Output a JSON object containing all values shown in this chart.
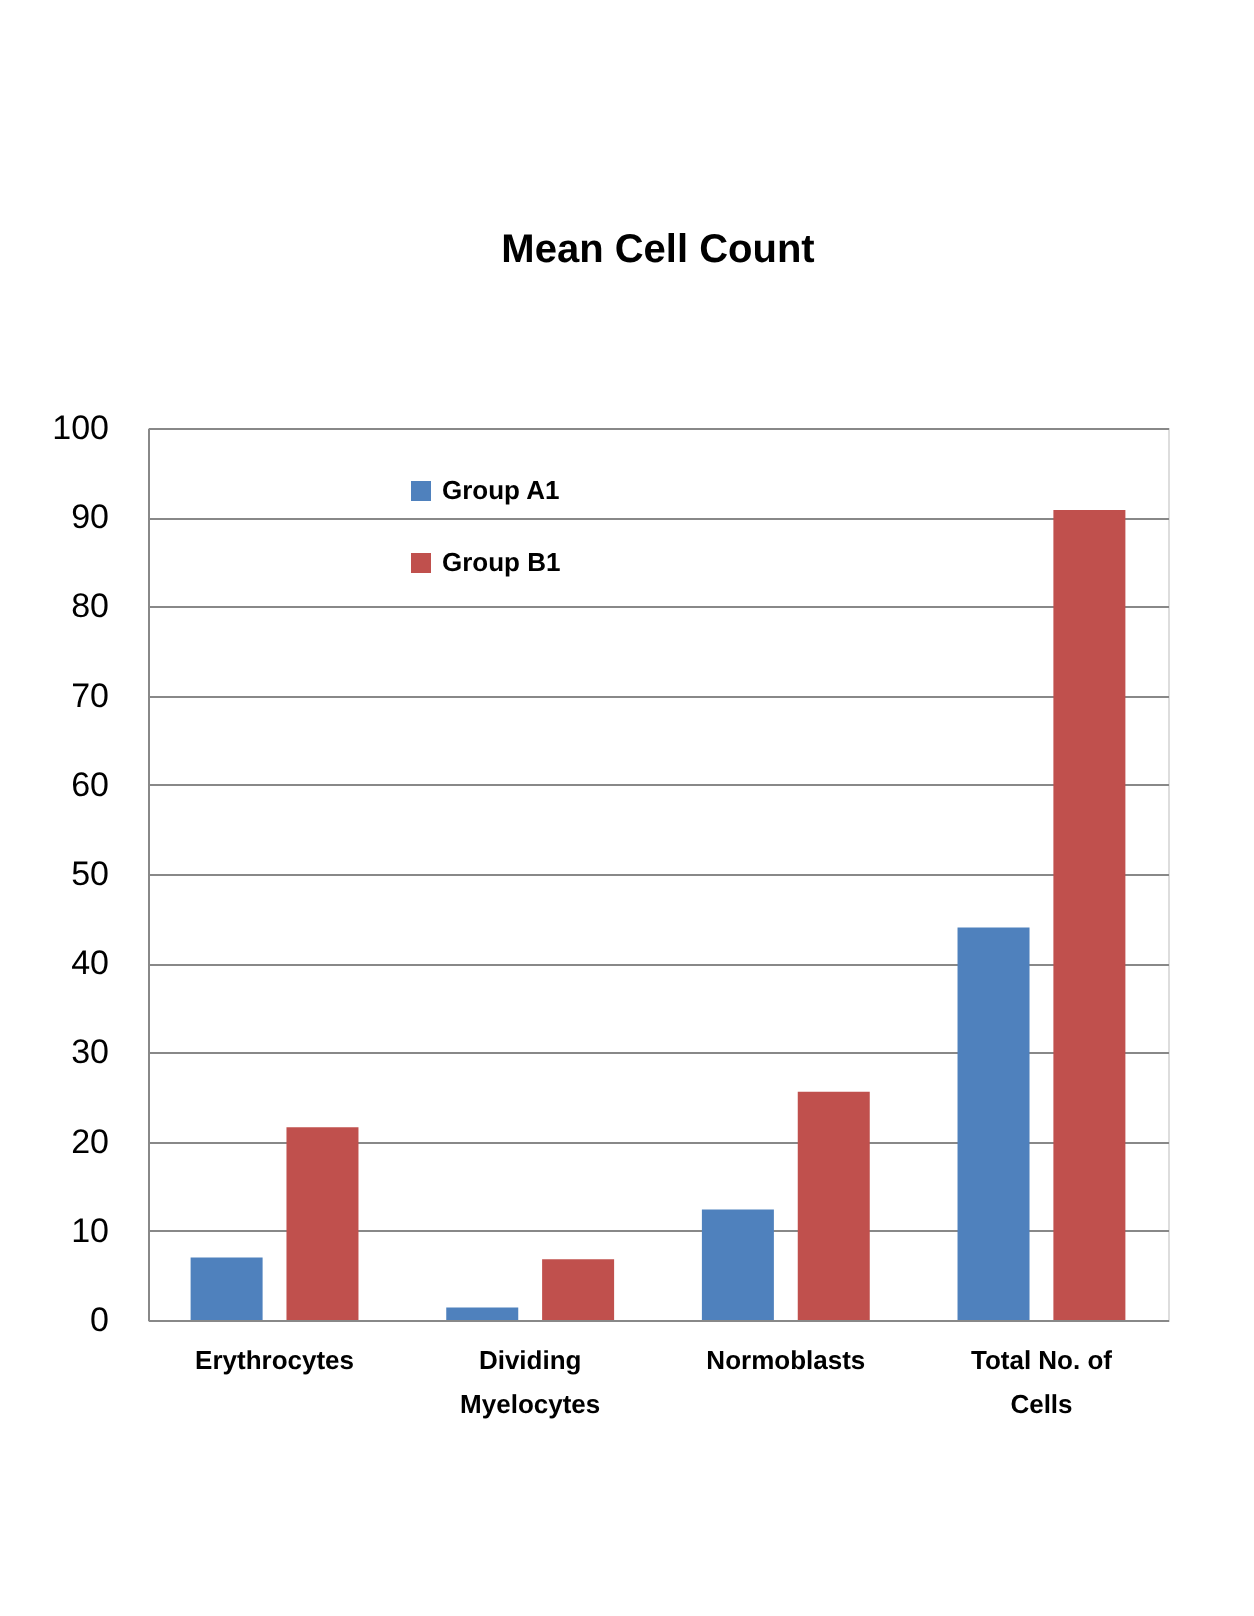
{
  "chart_data": {
    "type": "bar",
    "title": "Mean Cell Count",
    "categories": [
      "Erythrocytes",
      "Dividing Myelocytes",
      "Normoblasts",
      "Total No. of Cells"
    ],
    "series": [
      {
        "name": "Group A1",
        "color": "#4f81bd",
        "values": [
          7.0,
          1.4,
          12.4,
          44.0
        ]
      },
      {
        "name": "Group B1",
        "color": "#c0504d",
        "values": [
          21.6,
          6.8,
          25.6,
          90.8
        ]
      }
    ],
    "ylim": [
      0,
      100
    ],
    "yticks": [
      0,
      10,
      20,
      30,
      40,
      50,
      60,
      70,
      80,
      90,
      100
    ],
    "grid": "y",
    "legend": "top left"
  }
}
